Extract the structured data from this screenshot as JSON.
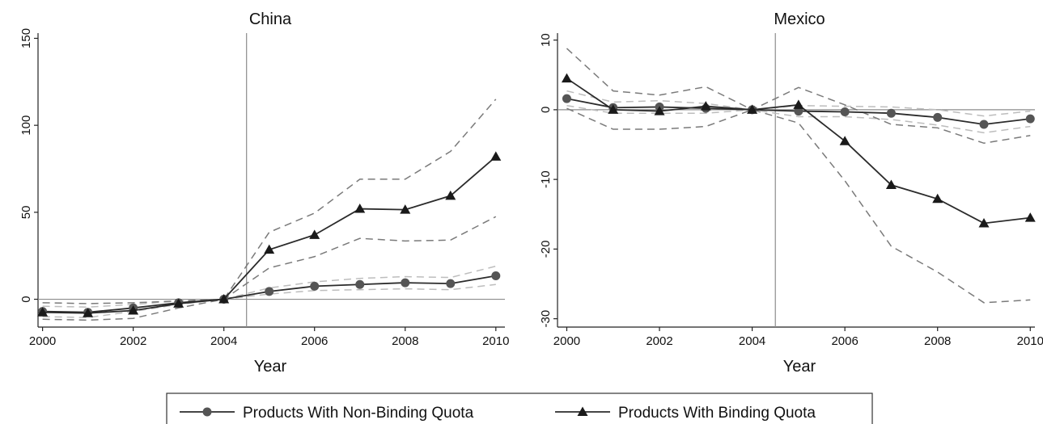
{
  "chart_data": [
    {
      "type": "line",
      "title": "China",
      "xlabel": "Year",
      "ylabel": "",
      "x": [
        2000,
        2001,
        2002,
        2003,
        2004,
        2005,
        2006,
        2007,
        2008,
        2009,
        2010
      ],
      "xticks": [
        2000,
        2002,
        2004,
        2006,
        2008,
        2010
      ],
      "xlim": [
        1999.9,
        2010.2
      ],
      "ylim": [
        -16,
        153
      ],
      "yticks": [
        0,
        50,
        100,
        150
      ],
      "reference_lines": {
        "horizontal": 0,
        "vertical": 2004.5
      },
      "series": [
        {
          "name": "Products With Non-Binding Quota",
          "marker": "circle",
          "style": "solid",
          "values": [
            -7,
            -7.5,
            -5,
            -2,
            0,
            4.5,
            7.5,
            8.5,
            9.5,
            9,
            13.5
          ]
        },
        {
          "name": "Products With Binding Quota",
          "marker": "triangle",
          "style": "solid",
          "values": [
            -7.5,
            -8,
            -6.5,
            -2.5,
            0,
            28.5,
            37,
            52,
            51.5,
            59.5,
            82
          ]
        },
        {
          "band_of": "Products With Binding Quota",
          "style": "dashed-dark",
          "upper": [
            -2,
            -2.5,
            -2,
            -1,
            0,
            38.5,
            49.5,
            69,
            69,
            85,
            115
          ],
          "lower": [
            -11.5,
            -12,
            -11,
            -5,
            0,
            18,
            24.5,
            35,
            33.5,
            34,
            47.5
          ]
        },
        {
          "band_of": "Products With Non-Binding Quota",
          "style": "dashed-light",
          "upper": [
            -4,
            -4.5,
            -3,
            -1,
            0,
            6.5,
            10,
            12,
            13,
            12.5,
            19
          ],
          "lower": [
            -10,
            -10.5,
            -7,
            -3,
            0,
            3,
            5,
            5.5,
            6,
            5.5,
            8.5
          ]
        }
      ]
    },
    {
      "type": "line",
      "title": "Mexico",
      "xlabel": "Year",
      "ylabel": "",
      "x": [
        2000,
        2001,
        2002,
        2003,
        2004,
        2005,
        2006,
        2007,
        2008,
        2009,
        2010
      ],
      "xticks": [
        2000,
        2002,
        2004,
        2006,
        2008,
        2010
      ],
      "xlim": [
        1999.8,
        2010.1
      ],
      "ylim": [
        -31.2,
        11
      ],
      "yticks": [
        10,
        0,
        -10,
        -20,
        -30
      ],
      "reference_lines": {
        "horizontal": 0,
        "vertical": 2004.5
      },
      "series": [
        {
          "name": "Products With Non-Binding Quota",
          "marker": "circle",
          "style": "solid",
          "values": [
            1.6,
            0.3,
            0.4,
            0.2,
            0,
            -0.2,
            -0.3,
            -0.5,
            -1.1,
            -2.1,
            -1.3
          ]
        },
        {
          "name": "Products With Binding Quota",
          "marker": "triangle",
          "style": "solid",
          "values": [
            4.5,
            0,
            -0.2,
            0.5,
            0,
            0.7,
            -4.5,
            -10.8,
            -12.8,
            -16.3,
            -15.5
          ]
        },
        {
          "band_of": "Products With Binding Quota",
          "style": "dashed-dark",
          "upper": [
            8.8,
            2.7,
            2.1,
            3.3,
            0,
            3.2,
            0.7,
            -2.1,
            -2.6,
            -4.8,
            -3.7
          ],
          "lower": [
            0.2,
            -2.8,
            -2.8,
            -2.4,
            0,
            -1.9,
            -10.2,
            -19.6,
            -23.3,
            -27.7,
            -27.3
          ]
        },
        {
          "band_of": "Products With Non-Binding Quota",
          "style": "dashed-light",
          "upper": [
            2.7,
            1.1,
            1.3,
            0.9,
            0,
            0.6,
            0.5,
            0.4,
            0,
            -0.9,
            -0.2
          ],
          "lower": [
            0.6,
            -0.5,
            -0.5,
            -0.5,
            0,
            -1,
            -1,
            -1.4,
            -2.2,
            -3.3,
            -2.4
          ]
        }
      ]
    }
  ],
  "legend": {
    "placement": "bottom",
    "items": [
      {
        "label": "Products With Non-Binding Quota",
        "marker": "circle"
      },
      {
        "label": "Products With Binding Quota",
        "marker": "triangle"
      }
    ]
  },
  "colors": {
    "main_line": "#2b2b2b",
    "marker": "#555555",
    "band_dark": "#7a7a7a",
    "band_light": "#bdbdbd",
    "reference_line": "#8c8c8c"
  }
}
